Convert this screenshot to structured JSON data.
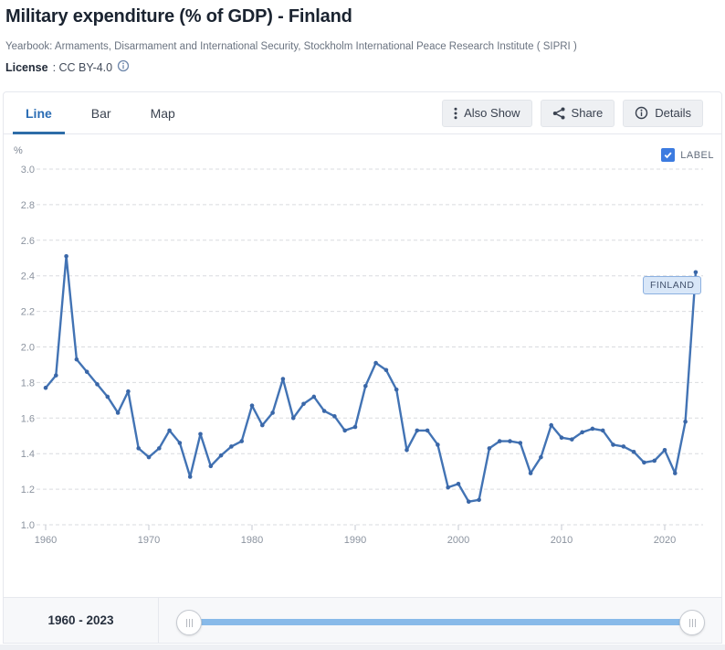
{
  "header": {
    "title": "Military expenditure (% of GDP) - Finland",
    "subtitle": "Yearbook: Armaments, Disarmament and International Security, Stockholm International Peace Research Institute ( SIPRI )",
    "license_label": "License",
    "license_value": ": CC BY-4.0",
    "license_icon": "info-circle-icon"
  },
  "tabs": [
    {
      "label": "Line",
      "active": true
    },
    {
      "label": "Bar",
      "active": false
    },
    {
      "label": "Map",
      "active": false
    }
  ],
  "toolbar": {
    "buttons": [
      {
        "icon": "kebab-icon",
        "label": "Also Show"
      },
      {
        "icon": "share-icon",
        "label": "Share"
      },
      {
        "icon": "info-icon",
        "label": "Details"
      }
    ]
  },
  "chart_controls": {
    "label_checkbox": {
      "label": "LABEL",
      "checked": true,
      "icon": "checkmark-icon"
    }
  },
  "range_footer": {
    "label": "1960 - 2023",
    "slider_min": 1960,
    "slider_max": 2023
  },
  "colors": {
    "accent_blue": "#2a6cb4",
    "line": "#4273b4",
    "point": "#3a67a8",
    "grid": "#d9dbdf",
    "axis_text": "#8b939f",
    "tag_bg": "#d9e7f8",
    "tag_border": "#8cb0e0",
    "checkbox_blue": "#3c7be0",
    "slider_blue": "#88bae9"
  },
  "chart_data": {
    "type": "line",
    "title": "Military expenditure (% of GDP) - Finland",
    "ylabel": "%",
    "ylim": [
      1.0,
      3.0
    ],
    "yticks": [
      "3.0",
      "2.8",
      "2.6",
      "2.4",
      "2.2",
      "2.0",
      "1.8",
      "1.6",
      "1.4",
      "1.2",
      "1.0"
    ],
    "xticks": [
      1960,
      1970,
      1980,
      1990,
      2000,
      2010,
      2020
    ],
    "grid": "horizontal-dashed",
    "series_label": "FINLAND",
    "line_color": "#4273b4",
    "point_color": "#3a67a8",
    "x": [
      1960,
      1961,
      1962,
      1963,
      1964,
      1965,
      1966,
      1967,
      1968,
      1969,
      1970,
      1971,
      1972,
      1973,
      1974,
      1975,
      1976,
      1977,
      1978,
      1979,
      1980,
      1981,
      1982,
      1983,
      1984,
      1985,
      1986,
      1987,
      1988,
      1989,
      1990,
      1991,
      1992,
      1993,
      1994,
      1995,
      1996,
      1997,
      1998,
      1999,
      2000,
      2001,
      2002,
      2003,
      2004,
      2005,
      2006,
      2007,
      2008,
      2009,
      2010,
      2011,
      2012,
      2013,
      2014,
      2015,
      2016,
      2017,
      2018,
      2019,
      2020,
      2021,
      2022,
      2023
    ],
    "values": [
      1.77,
      1.84,
      2.51,
      1.93,
      1.86,
      1.79,
      1.72,
      1.63,
      1.75,
      1.43,
      1.38,
      1.43,
      1.53,
      1.46,
      1.27,
      1.51,
      1.33,
      1.39,
      1.44,
      1.47,
      1.67,
      1.56,
      1.63,
      1.82,
      1.6,
      1.68,
      1.72,
      1.64,
      1.61,
      1.53,
      1.55,
      1.78,
      1.91,
      1.87,
      1.76,
      1.42,
      1.53,
      1.53,
      1.45,
      1.21,
      1.23,
      1.13,
      1.14,
      1.43,
      1.47,
      1.47,
      1.46,
      1.29,
      1.38,
      1.56,
      1.49,
      1.48,
      1.52,
      1.54,
      1.53,
      1.45,
      1.44,
      1.41,
      1.35,
      1.36,
      1.42,
      1.29,
      1.58,
      2.42
    ]
  }
}
